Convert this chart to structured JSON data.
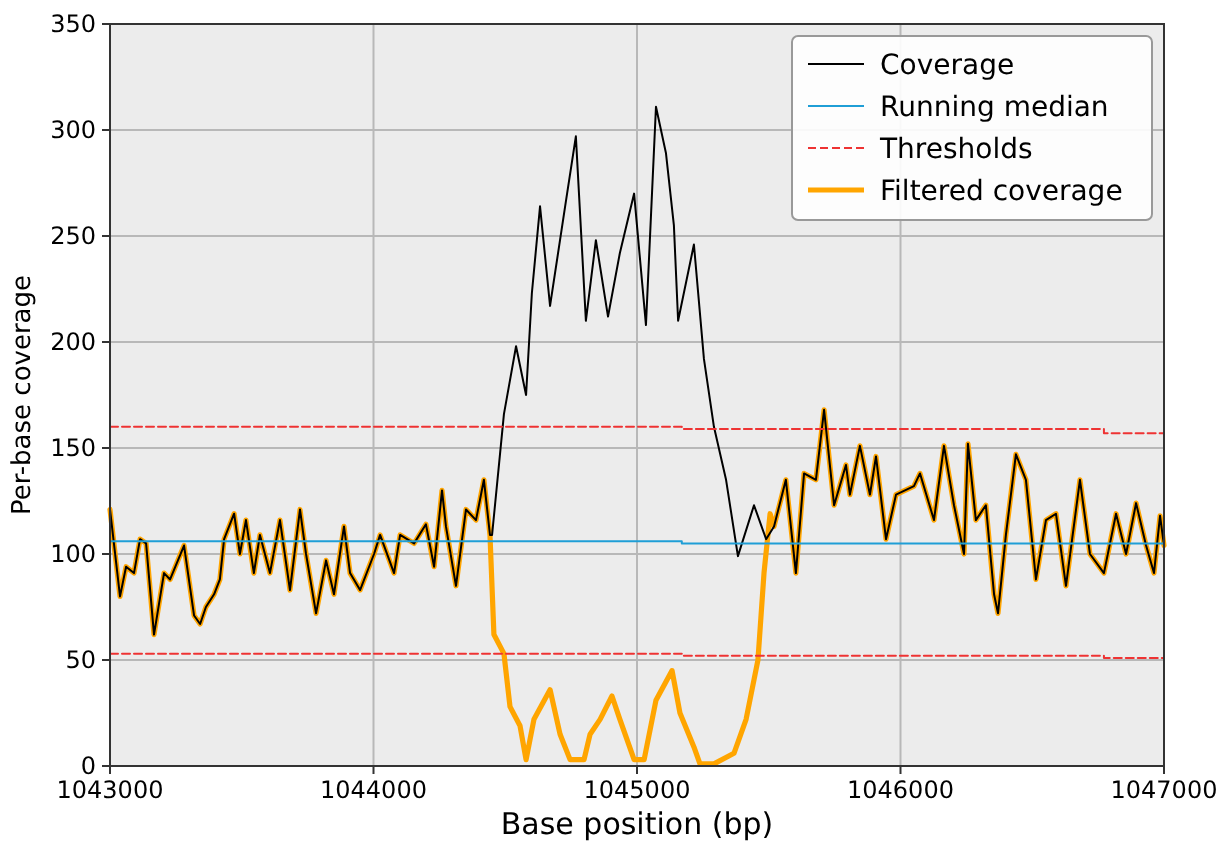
{
  "chart_data": {
    "type": "line",
    "xlabel": "Base position (bp)",
    "ylabel": "Per-base coverage",
    "xlim": [
      1043000,
      1047000
    ],
    "xticks": [
      1043000,
      1044000,
      1045000,
      1046000,
      1047000
    ],
    "ylim": [
      0,
      350
    ],
    "yticks": [
      0,
      50,
      100,
      150,
      200,
      250,
      300,
      350
    ],
    "grid": true,
    "legend": "top right",
    "series": [
      {
        "name": "Coverage",
        "color": "#000000",
        "line_style": "solid",
        "x": [
          1043000,
          1043038,
          1043061,
          1043091,
          1043114,
          1043137,
          1043167,
          1043205,
          1043228,
          1043281,
          1043319,
          1043342,
          1043364,
          1043395,
          1043417,
          1043433,
          1043471,
          1043493,
          1043516,
          1043546,
          1043569,
          1043607,
          1043645,
          1043683,
          1043721,
          1043744,
          1043782,
          1043820,
          1043850,
          1043888,
          1043911,
          1043949,
          1044002,
          1044025,
          1044078,
          1044101,
          1044154,
          1044199,
          1044230,
          1044260,
          1044275,
          1044313,
          1044351,
          1044389,
          1044419,
          1044442,
          1044450,
          1044495,
          1044541,
          1044579,
          1044601,
          1044632,
          1044670,
          1044731,
          1044768,
          1044806,
          1044844,
          1044890,
          1044935,
          1044989,
          1045034,
          1045072,
          1045110,
          1045140,
          1045156,
          1045216,
          1045254,
          1045292,
          1045338,
          1045383,
          1045444,
          1045490,
          1045520,
          1045565,
          1045603,
          1045634,
          1045679,
          1045710,
          1045748,
          1045793,
          1045808,
          1045846,
          1045884,
          1045907,
          1045945,
          1045983,
          1046051,
          1046074,
          1046127,
          1046165,
          1046203,
          1046241,
          1046256,
          1046286,
          1046324,
          1046355,
          1046370,
          1046400,
          1046438,
          1046476,
          1046514,
          1046552,
          1046590,
          1046628,
          1046681,
          1046719,
          1046772,
          1046818,
          1046856,
          1046894,
          1046932,
          1046962,
          1046985,
          1047000
        ],
        "values": [
          121,
          80,
          94,
          91,
          107,
          105,
          62,
          91,
          88,
          104,
          71,
          67,
          75,
          81,
          88,
          107,
          119,
          100,
          116,
          91,
          109,
          91,
          116,
          83,
          121,
          100,
          72,
          97,
          81,
          113,
          91,
          83,
          100,
          109,
          91,
          109,
          105,
          114,
          94,
          130,
          113,
          85,
          121,
          116,
          135,
          109,
          109,
          166,
          198,
          175,
          223,
          264,
          217,
          267,
          297,
          210,
          248,
          212,
          242,
          270,
          208,
          311,
          289,
          255,
          210,
          246,
          192,
          160,
          135,
          99,
          123,
          107,
          113,
          135,
          91,
          138,
          135,
          168,
          123,
          142,
          128,
          151,
          128,
          146,
          107,
          128,
          132,
          138,
          116,
          151,
          123,
          100,
          152,
          116,
          123,
          81,
          72,
          109,
          147,
          135,
          88,
          116,
          119,
          85,
          135,
          100,
          91,
          119,
          100,
          124,
          104,
          91,
          118,
          104
        ]
      },
      {
        "name": "Running median",
        "color": "#1f9ed6",
        "line_style": "solid",
        "x": [
          1043000,
          1045170,
          1045170,
          1047000
        ],
        "values": [
          106,
          106,
          105,
          105
        ]
      },
      {
        "name": "Thresholds",
        "color": "#ee3333",
        "line_style": "dashed",
        "x": [
          1043000,
          1045170,
          1045170,
          1046772,
          1046772,
          1047000
        ],
        "values": [
          160,
          160,
          159,
          159,
          157,
          157
        ]
      },
      {
        "color": "#ee3333",
        "line_style": "dashed",
        "x": [
          1043000,
          1045170,
          1045170,
          1046772,
          1046772,
          1047000
        ],
        "values": [
          53,
          53,
          52,
          52,
          51,
          51
        ]
      },
      {
        "name": "Filtered coverage",
        "color": "#ffa500",
        "line_style": "solid",
        "x": [
          1043000,
          1043038,
          1043061,
          1043091,
          1043114,
          1043137,
          1043167,
          1043205,
          1043228,
          1043281,
          1043319,
          1043342,
          1043364,
          1043395,
          1043417,
          1043433,
          1043471,
          1043493,
          1043516,
          1043546,
          1043569,
          1043607,
          1043645,
          1043683,
          1043721,
          1043744,
          1043782,
          1043820,
          1043850,
          1043888,
          1043911,
          1043949,
          1044002,
          1044025,
          1044078,
          1044101,
          1044154,
          1044199,
          1044230,
          1044260,
          1044275,
          1044313,
          1044351,
          1044389,
          1044419,
          1044442,
          1044457,
          1044495,
          1044518,
          1044556,
          1044579,
          1044609,
          1044670,
          1044708,
          1044746,
          1044799,
          1044822,
          1044860,
          1044905,
          1044935,
          1044989,
          1045027,
          1045072,
          1045133,
          1045163,
          1045216,
          1045239,
          1045292,
          1045368,
          1045414,
          1045459,
          1045482,
          1045505,
          1045520,
          1045565,
          1045603,
          1045634,
          1045679,
          1045710,
          1045748,
          1045793,
          1045808,
          1045846,
          1045884,
          1045907,
          1045945,
          1045983,
          1046051,
          1046074,
          1046127,
          1046165,
          1046203,
          1046241,
          1046256,
          1046286,
          1046324,
          1046355,
          1046370,
          1046400,
          1046438,
          1046476,
          1046514,
          1046552,
          1046590,
          1046628,
          1046681,
          1046719,
          1046772,
          1046818,
          1046856,
          1046894,
          1046932,
          1046962,
          1046985,
          1047000
        ],
        "values": [
          121,
          80,
          94,
          91,
          107,
          105,
          62,
          91,
          88,
          104,
          71,
          67,
          75,
          81,
          88,
          107,
          119,
          100,
          116,
          91,
          109,
          91,
          116,
          83,
          121,
          100,
          72,
          97,
          81,
          113,
          91,
          83,
          100,
          109,
          91,
          109,
          105,
          114,
          94,
          130,
          113,
          85,
          121,
          116,
          135,
          109,
          62,
          53,
          28,
          19,
          3,
          22,
          36,
          15,
          3,
          3,
          15,
          22,
          33,
          22,
          3,
          3,
          31,
          45,
          25,
          9,
          1,
          1,
          6,
          22,
          50,
          91,
          119,
          113,
          135,
          91,
          138,
          135,
          168,
          123,
          142,
          128,
          151,
          128,
          146,
          107,
          128,
          132,
          138,
          116,
          151,
          123,
          100,
          152,
          116,
          123,
          81,
          72,
          109,
          147,
          135,
          88,
          116,
          119,
          85,
          135,
          100,
          91,
          119,
          100,
          124,
          104,
          91,
          118,
          104
        ]
      }
    ]
  }
}
